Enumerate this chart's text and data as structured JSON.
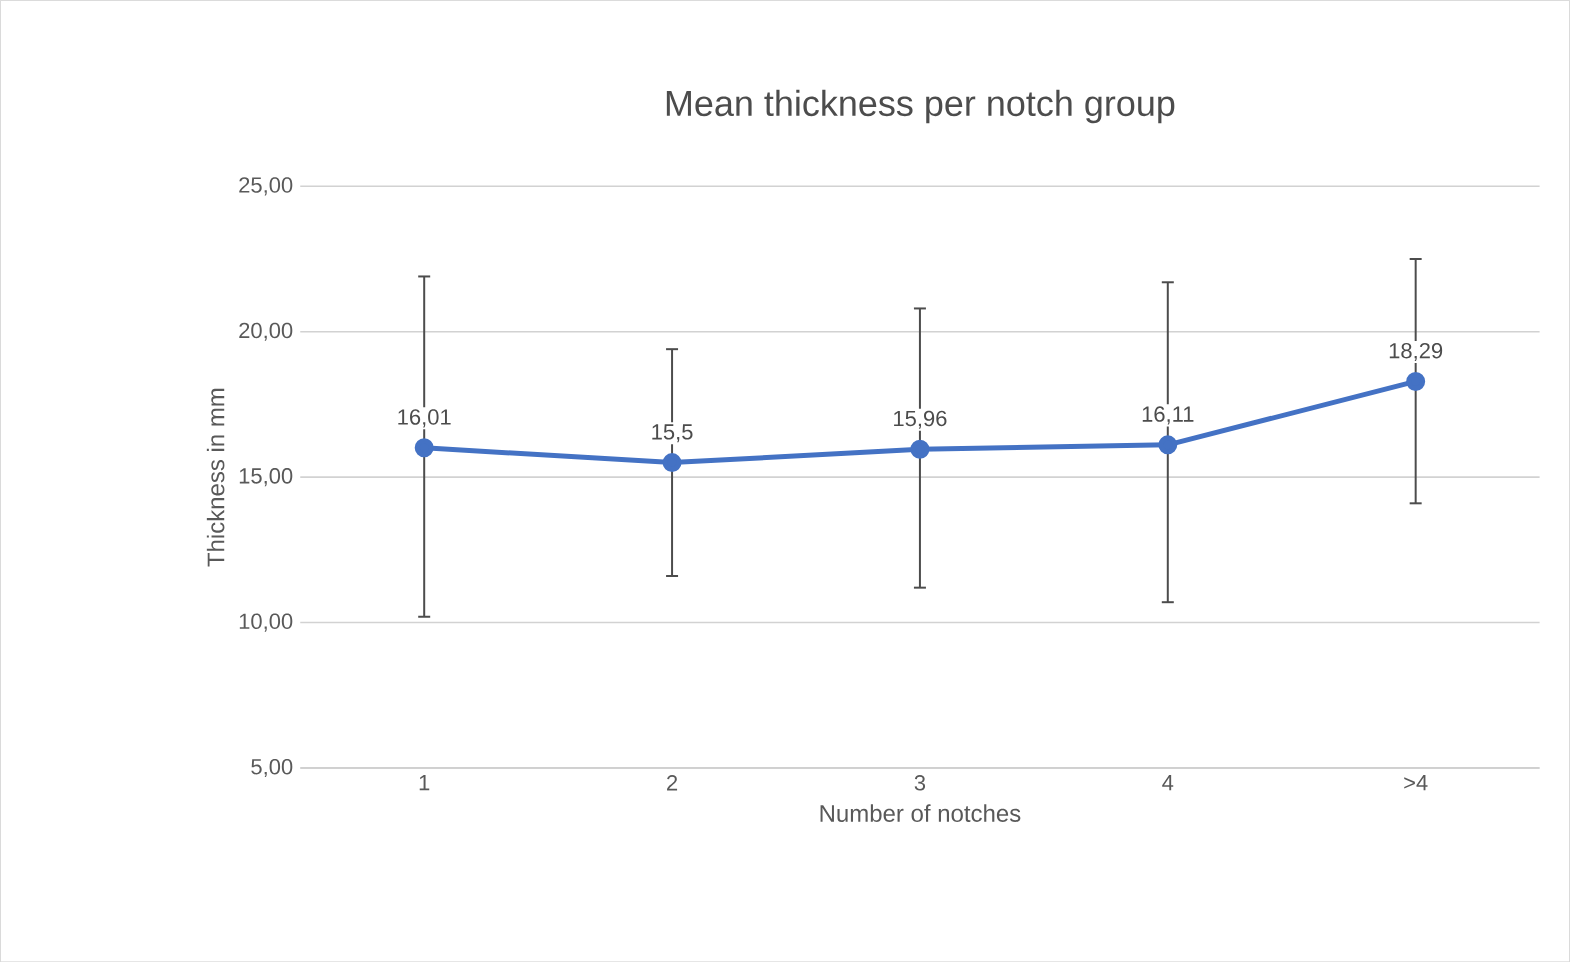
{
  "chart_data": {
    "type": "line",
    "title": "Mean thickness per notch group",
    "xlabel": "Number of notches",
    "ylabel": "Thickness in mm",
    "categories": [
      "1",
      "2",
      "3",
      "4",
      ">4"
    ],
    "series": [
      {
        "color": "#4472c4",
        "values": [
          16.01,
          15.5,
          15.96,
          16.11,
          18.29
        ],
        "value_labels": [
          "16,01",
          "15,5",
          "15,96",
          "16,11",
          "18,29"
        ],
        "errors": [
          [
            10.2,
            21.9
          ],
          [
            11.6,
            19.4
          ],
          [
            11.2,
            20.8
          ],
          [
            10.7,
            21.7
          ],
          [
            14.1,
            22.5
          ]
        ]
      }
    ],
    "ylim": [
      5,
      25
    ],
    "yticks": [
      {
        "value": 5,
        "label": "5,00"
      },
      {
        "value": 10,
        "label": "10,00"
      },
      {
        "value": 15,
        "label": "15,00"
      },
      {
        "value": 20,
        "label": "20,00"
      },
      {
        "value": 25,
        "label": "25,00"
      }
    ],
    "grid": "y",
    "marker": "circle",
    "line_style": "solid"
  }
}
